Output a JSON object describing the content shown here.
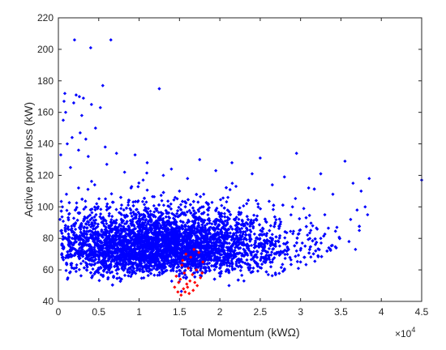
{
  "chart_data": {
    "type": "scatter",
    "title": "",
    "xlabel": "Total Momentum (kWΩ)",
    "ylabel": "Active power loss (kW)",
    "x_exponent_label": "×10",
    "x_exponent_power": "4",
    "xlim": [
      0,
      45000
    ],
    "ylim": [
      40,
      220
    ],
    "x_ticks": [
      0,
      5000,
      10000,
      15000,
      20000,
      25000,
      30000,
      35000,
      40000,
      45000
    ],
    "x_tick_labels": [
      "0",
      "0.5",
      "1",
      "1.5",
      "2",
      "2.5",
      "3",
      "3.5",
      "4",
      "4.5"
    ],
    "y_ticks": [
      40,
      60,
      80,
      100,
      120,
      140,
      160,
      180,
      200,
      220
    ],
    "y_tick_labels": [
      "40",
      "60",
      "80",
      "100",
      "120",
      "140",
      "160",
      "180",
      "200",
      "220"
    ],
    "grid": false,
    "legend": "none",
    "series": [
      {
        "color": "#0000ff",
        "marker": "diamond",
        "points": [
          [
            2000,
            206
          ],
          [
            6500,
            206
          ],
          [
            4000,
            201
          ],
          [
            5500,
            177
          ],
          [
            12500,
            175
          ],
          [
            800,
            172
          ],
          [
            2200,
            171
          ],
          [
            2600,
            170
          ],
          [
            3100,
            169
          ],
          [
            700,
            167
          ],
          [
            1900,
            166
          ],
          [
            4100,
            165
          ],
          [
            5200,
            163
          ],
          [
            900,
            160
          ],
          [
            2900,
            158
          ],
          [
            600,
            155
          ],
          [
            4600,
            150
          ],
          [
            2700,
            147
          ],
          [
            1700,
            144
          ],
          [
            3400,
            143
          ],
          [
            1100,
            140
          ],
          [
            5800,
            138
          ],
          [
            2500,
            136
          ],
          [
            7200,
            134
          ],
          [
            9500,
            133
          ],
          [
            300,
            133
          ],
          [
            3700,
            132
          ],
          [
            17500,
            130
          ],
          [
            25000,
            131
          ],
          [
            29500,
            134
          ],
          [
            35500,
            129
          ],
          [
            21500,
            128
          ],
          [
            11000,
            128
          ],
          [
            6000,
            127
          ],
          [
            1500,
            125
          ],
          [
            14000,
            124
          ],
          [
            19500,
            123
          ],
          [
            8200,
            122
          ],
          [
            24000,
            121
          ],
          [
            32500,
            121
          ],
          [
            13000,
            120
          ],
          [
            28000,
            119
          ],
          [
            38500,
            118
          ],
          [
            45000,
            117
          ],
          [
            16000,
            118
          ],
          [
            10500,
            117
          ],
          [
            36500,
            115
          ],
          [
            26500,
            114
          ],
          [
            22000,
            113
          ],
          [
            31000,
            112
          ],
          [
            37500,
            110
          ],
          [
            34000,
            108
          ],
          [
            38000,
            100
          ],
          [
            37000,
            98
          ],
          [
            38300,
            95
          ],
          [
            36200,
            92
          ],
          [
            34500,
            87
          ],
          [
            36000,
            78
          ],
          [
            36800,
            73
          ],
          [
            33500,
            74
          ],
          [
            29500,
            72
          ],
          [
            30500,
            68
          ],
          [
            32500,
            80
          ],
          [
            28000,
            60
          ],
          [
            26000,
            57
          ],
          [
            30000,
            65
          ],
          [
            27500,
            70
          ],
          [
            31500,
            88
          ],
          [
            33000,
            95
          ],
          [
            29000,
            100
          ],
          [
            24500,
            104
          ],
          [
            21000,
            106
          ],
          [
            18000,
            108
          ],
          [
            15000,
            110
          ],
          [
            9000,
            112
          ],
          [
            4500,
            114
          ],
          [
            2500,
            112
          ],
          [
            1000,
            108
          ],
          [
            500,
            100
          ],
          [
            200,
            92
          ],
          [
            400,
            85
          ],
          [
            700,
            80
          ],
          [
            1500,
            70
          ],
          [
            2800,
            64
          ],
          [
            3500,
            60
          ]
        ]
      },
      {
        "color": "#ff0000",
        "marker": "diamond",
        "points": [
          [
            16800,
            73
          ],
          [
            17400,
            71
          ],
          [
            15800,
            70
          ],
          [
            16400,
            68
          ],
          [
            17900,
            65
          ],
          [
            15300,
            63
          ],
          [
            16100,
            61
          ],
          [
            17100,
            60
          ],
          [
            15600,
            58
          ],
          [
            16600,
            57
          ],
          [
            14600,
            56
          ],
          [
            17600,
            55
          ],
          [
            15100,
            54
          ],
          [
            16300,
            53
          ],
          [
            14900,
            52
          ],
          [
            15900,
            51
          ],
          [
            17200,
            50
          ],
          [
            14400,
            49
          ],
          [
            15500,
            48
          ],
          [
            16700,
            47
          ],
          [
            14800,
            46
          ],
          [
            15700,
            46
          ],
          [
            16200,
            45
          ],
          [
            15200,
            44
          ],
          [
            16900,
            52
          ],
          [
            17800,
            58
          ],
          [
            15400,
            66
          ],
          [
            16000,
            49
          ]
        ]
      }
    ],
    "cloud": {
      "description_free": true,
      "count": 5200,
      "center_x": 12500,
      "center_y": 72,
      "spread_x": 7500,
      "spread_y": 13,
      "min_y": 43
    }
  }
}
